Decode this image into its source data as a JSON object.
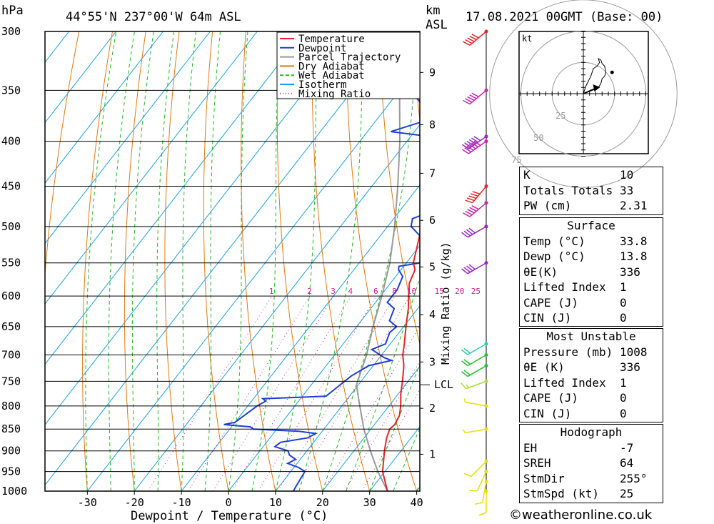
{
  "header": {
    "pressure_unit": "hPa",
    "location": "44°55'N 237°00'W 64m ASL",
    "km_label": "km",
    "asl_label": "ASL",
    "datetime": "17.08.2021 00GMT (Base: 00)"
  },
  "legend": [
    {
      "label": "Temperature",
      "color": "#e8242a",
      "style": "solid"
    },
    {
      "label": "Dewpoint",
      "color": "#1d3fd6",
      "style": "solid"
    },
    {
      "label": "Parcel Trajectory",
      "color": "#9a9a9a",
      "style": "solid"
    },
    {
      "label": "Dry Adiabat",
      "color": "#e07a10",
      "style": "solid"
    },
    {
      "label": "Wet Adiabat",
      "color": "#22b822",
      "style": "dashed"
    },
    {
      "label": "Isotherm",
      "color": "#1aa0e0",
      "style": "solid"
    },
    {
      "label": "Mixing Ratio",
      "color": "#cc2288",
      "style": "dotted"
    }
  ],
  "chart_data": {
    "type": "line",
    "xlabel": "Dewpoint / Temperature (°C)",
    "ylabel": "hPa",
    "xlim": [
      -40,
      40
    ],
    "ylim": [
      1000,
      300
    ],
    "x_ticks": [
      -30,
      -20,
      -10,
      0,
      10,
      20,
      30,
      40
    ],
    "pressure_levels": [
      300,
      350,
      400,
      450,
      500,
      550,
      600,
      650,
      700,
      750,
      800,
      850,
      900,
      950,
      1000
    ],
    "km_ticks": [
      {
        "label": "1",
        "p": 908
      },
      {
        "label": "2",
        "p": 805
      },
      {
        "label": "3",
        "p": 713
      },
      {
        "label": "4",
        "p": 630
      },
      {
        "label": "5",
        "p": 556
      },
      {
        "label": "6",
        "p": 492
      },
      {
        "label": "7",
        "p": 435
      },
      {
        "label": "8",
        "p": 383
      },
      {
        "label": "9",
        "p": 334
      }
    ],
    "lcl": {
      "label": "LCL",
      "p": 757
    },
    "mixing_ratio_axis_label": "Mixing Ratio (g/kg)",
    "mixing_ratio_labels": [
      "1",
      "2",
      "3",
      "4",
      "6",
      "8",
      "10",
      "15",
      "20",
      "25"
    ],
    "mixing_ratio_values": [
      1,
      2,
      3,
      4,
      6,
      8,
      10,
      15,
      20,
      25
    ],
    "series": [
      {
        "name": "Temperature",
        "color": "#e8242a",
        "points": [
          [
            1000,
            33.8
          ],
          [
            950,
            29.5
          ],
          [
            900,
            26.5
          ],
          [
            870,
            24.8
          ],
          [
            850,
            24
          ],
          [
            840,
            24.3
          ],
          [
            820,
            23.8
          ],
          [
            800,
            22.5
          ],
          [
            775,
            20.5
          ],
          [
            750,
            18.8
          ],
          [
            720,
            16.5
          ],
          [
            700,
            14.5
          ],
          [
            680,
            13
          ],
          [
            650,
            10.5
          ],
          [
            620,
            8
          ],
          [
            600,
            6
          ],
          [
            580,
            4
          ],
          [
            560,
            3
          ],
          [
            550,
            1.5
          ],
          [
            520,
            -1
          ],
          [
            500,
            -2.8
          ],
          [
            470,
            -5.5
          ],
          [
            450,
            -7.5
          ],
          [
            430,
            -9.5
          ],
          [
            410,
            -12.5
          ],
          [
            400,
            -13.5
          ],
          [
            380,
            -16.5
          ],
          [
            360,
            -18.5
          ],
          [
            350,
            -20.5
          ],
          [
            330,
            -24.5
          ],
          [
            315,
            -27.5
          ],
          [
            300,
            -30.5
          ]
        ]
      },
      {
        "name": "Dewpoint",
        "color": "#1d3fd6",
        "points": [
          [
            1000,
            13.8
          ],
          [
            990,
            13.6
          ],
          [
            950,
            13
          ],
          [
            940,
            11
          ],
          [
            930,
            8
          ],
          [
            920,
            9
          ],
          [
            910,
            7
          ],
          [
            900,
            6
          ],
          [
            890,
            2.5
          ],
          [
            880,
            3
          ],
          [
            870,
            8
          ],
          [
            860,
            9
          ],
          [
            855,
            5
          ],
          [
            850,
            -5
          ],
          [
            845,
            -6
          ],
          [
            840,
            -12
          ],
          [
            835,
            -10
          ],
          [
            800,
            -8
          ],
          [
            790,
            -7
          ],
          [
            785,
            -8
          ],
          [
            780,
            5
          ],
          [
            760,
            6
          ],
          [
            740,
            7
          ],
          [
            720,
            9
          ],
          [
            710,
            13
          ],
          [
            705,
            11
          ],
          [
            690,
            7
          ],
          [
            680,
            9
          ],
          [
            660,
            8
          ],
          [
            650,
            8.5
          ],
          [
            640,
            6
          ],
          [
            620,
            5
          ],
          [
            610,
            2.5
          ],
          [
            590,
            2.5
          ],
          [
            570,
            1.5
          ],
          [
            560,
            -0.5
          ],
          [
            555,
            -1
          ],
          [
            550,
            3
          ],
          [
            545,
            4.5
          ],
          [
            530,
            4
          ],
          [
            520,
            0.5
          ],
          [
            500,
            -5
          ],
          [
            490,
            -6
          ],
          [
            480,
            -3
          ],
          [
            470,
            -2
          ],
          [
            460,
            -3.5
          ],
          [
            440,
            -3
          ],
          [
            435,
            -6
          ],
          [
            430,
            -8
          ],
          [
            420,
            -7
          ],
          [
            400,
            -12
          ],
          [
            395,
            -16
          ],
          [
            390,
            -25
          ],
          [
            380,
            -20
          ],
          [
            370,
            -21
          ],
          [
            360,
            -24
          ],
          [
            350,
            -28
          ],
          [
            330,
            -32
          ],
          [
            320,
            -32
          ],
          [
            310,
            -32
          ],
          [
            300,
            -34
          ]
        ]
      },
      {
        "name": "Parcel Trajectory",
        "color": "#9a9a9a",
        "points": [
          [
            1000,
            33.8
          ],
          [
            950,
            28.5
          ],
          [
            900,
            23.5
          ],
          [
            850,
            18.5
          ],
          [
            800,
            13.8
          ],
          [
            757,
            9.6
          ],
          [
            700,
            6.8
          ],
          [
            650,
            3.5
          ],
          [
            600,
            0.3
          ],
          [
            550,
            -3.5
          ],
          [
            500,
            -8.5
          ],
          [
            450,
            -14.5
          ],
          [
            400,
            -21.5
          ],
          [
            350,
            -30
          ],
          [
            300,
            -40
          ]
        ]
      }
    ]
  },
  "wind_barbs": [
    {
      "p": 1000,
      "speed_kt": 10,
      "dir_deg": 180,
      "color": "#e8e000"
    },
    {
      "p": 975,
      "speed_kt": 10,
      "dir_deg": 190,
      "color": "#e8e000"
    },
    {
      "p": 950,
      "speed_kt": 10,
      "dir_deg": 205,
      "color": "#e8e000"
    },
    {
      "p": 925,
      "speed_kt": 10,
      "dir_deg": 225,
      "color": "#e8e000"
    },
    {
      "p": 850,
      "speed_kt": 5,
      "dir_deg": 260,
      "color": "#e8e000"
    },
    {
      "p": 800,
      "speed_kt": 5,
      "dir_deg": 280,
      "color": "#e8e000"
    },
    {
      "p": 750,
      "speed_kt": 15,
      "dir_deg": 250,
      "color": "#a8e02a"
    },
    {
      "p": 720,
      "speed_kt": 20,
      "dir_deg": 240,
      "color": "#22c030"
    },
    {
      "p": 700,
      "speed_kt": 20,
      "dir_deg": 240,
      "color": "#22c030"
    },
    {
      "p": 680,
      "speed_kt": 20,
      "dir_deg": 240,
      "color": "#22d0b0"
    },
    {
      "p": 550,
      "speed_kt": 40,
      "dir_deg": 240,
      "color": "#9a22c8"
    },
    {
      "p": 500,
      "speed_kt": 40,
      "dir_deg": 240,
      "color": "#9a22c8"
    },
    {
      "p": 470,
      "speed_kt": 50,
      "dir_deg": 230,
      "color": "#c822a8"
    },
    {
      "p": 450,
      "speed_kt": 50,
      "dir_deg": 220,
      "color": "#e8242a"
    },
    {
      "p": 400,
      "speed_kt": 60,
      "dir_deg": 235,
      "color": "#c822a8"
    },
    {
      "p": 395,
      "speed_kt": 60,
      "dir_deg": 235,
      "color": "#9a22c8"
    },
    {
      "p": 350,
      "speed_kt": 50,
      "dir_deg": 230,
      "color": "#c822a8"
    },
    {
      "p": 300,
      "speed_kt": 50,
      "dir_deg": 230,
      "color": "#e8242a"
    }
  ],
  "hodograph": {
    "unit_label": "kt",
    "ring_labels": [
      "25",
      "50",
      "75"
    ],
    "ring_values_kt": [
      25,
      50,
      75
    ],
    "trace_kt": [
      [
        0,
        0
      ],
      [
        5,
        2
      ],
      [
        9,
        4
      ],
      [
        12,
        5
      ],
      [
        14,
        8
      ],
      [
        15,
        12
      ],
      [
        17,
        14
      ],
      [
        18,
        17
      ],
      [
        17,
        22
      ],
      [
        15,
        24
      ],
      [
        14,
        27
      ],
      [
        12,
        28
      ],
      [
        13,
        25
      ],
      [
        11,
        22
      ],
      [
        8,
        20
      ],
      [
        6,
        14
      ],
      [
        4,
        10
      ],
      [
        2,
        6
      ],
      [
        0,
        0
      ]
    ],
    "storm_motion_kt": [
      [
        0,
        0
      ],
      [
        7,
        3
      ],
      [
        10,
        4
      ]
    ],
    "end_dot_kt": [
      23,
      17
    ]
  },
  "indices": [
    {
      "label": "K",
      "value": "10"
    },
    {
      "label": "Totals Totals",
      "value": "33"
    },
    {
      "label": "PW (cm)",
      "value": "2.31"
    }
  ],
  "surface": {
    "title": "Surface",
    "rows": [
      {
        "label": "Temp (°C)",
        "value": "33.8"
      },
      {
        "label": "Dewp (°C)",
        "value": "13.8"
      },
      {
        "label": "θE(K)",
        "value": "336"
      },
      {
        "label": "Lifted Index",
        "value": "1"
      },
      {
        "label": "CAPE (J)",
        "value": "0"
      },
      {
        "label": "CIN (J)",
        "value": "0"
      }
    ]
  },
  "most_unstable": {
    "title": "Most Unstable",
    "rows": [
      {
        "label": "Pressure (mb)",
        "value": "1008"
      },
      {
        "label": "θE (K)",
        "value": "336"
      },
      {
        "label": "Lifted Index",
        "value": "1"
      },
      {
        "label": "CAPE (J)",
        "value": "0"
      },
      {
        "label": "CIN (J)",
        "value": "0"
      }
    ]
  },
  "hodograph_panel": {
    "title": "Hodograph",
    "rows": [
      {
        "label": "EH",
        "value": "-7"
      },
      {
        "label": "SREH",
        "value": "64"
      },
      {
        "label": "StmDir",
        "value": "255°"
      },
      {
        "label": "StmSpd (kt)",
        "value": "25"
      }
    ]
  },
  "footer": {
    "copyright": "©weatheronline.co.uk"
  }
}
